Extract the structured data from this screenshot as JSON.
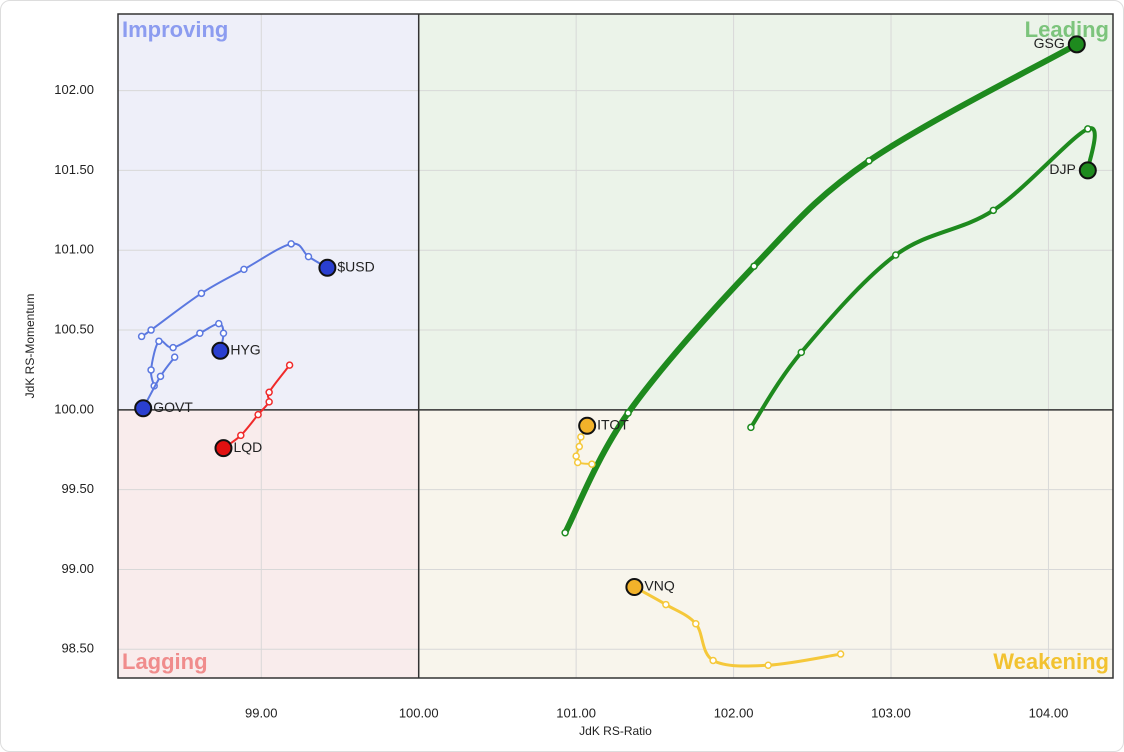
{
  "chart_data": {
    "type": "rrg",
    "xlabel": "JdK RS-Ratio",
    "ylabel": "JdK RS-Momentum",
    "xlim": [
      98.09,
      104.41
    ],
    "ylim": [
      98.32,
      102.48
    ],
    "xticks": [
      {
        "value": 99,
        "label": "99.00"
      },
      {
        "value": 100,
        "label": "100.00"
      },
      {
        "value": 101,
        "label": "101.00"
      },
      {
        "value": 102,
        "label": "102.00"
      },
      {
        "value": 103,
        "label": "103.00"
      },
      {
        "value": 104,
        "label": "104.00"
      }
    ],
    "yticks": [
      {
        "value": 98.5,
        "label": "98.50"
      },
      {
        "value": 99,
        "label": "99.00"
      },
      {
        "value": 99.5,
        "label": "99.50"
      },
      {
        "value": 100,
        "label": "100.00"
      },
      {
        "value": 100.5,
        "label": "100.50"
      },
      {
        "value": 101,
        "label": "101.00"
      },
      {
        "value": 101.5,
        "label": "101.50"
      },
      {
        "value": 102,
        "label": "102.00"
      }
    ],
    "grid": true,
    "center": [
      100,
      100
    ],
    "quadrants": [
      {
        "name": "Improving",
        "corner": "top-left",
        "color": "#8c9cf0",
        "fill": "#eeeff9"
      },
      {
        "name": "Leading",
        "corner": "top-right",
        "color": "#7cc47c",
        "fill": "#ebf3e9"
      },
      {
        "name": "Lagging",
        "corner": "bottom-left",
        "color": "#f08c8c",
        "fill": "#f9ecec"
      },
      {
        "name": "Weakening",
        "corner": "bottom-right",
        "color": "#f2c230",
        "fill": "#f8f5ec"
      }
    ],
    "series": [
      {
        "name": "GSG",
        "color": "#1e8a1e",
        "head_color": "#1e8a1e",
        "line_width": 6,
        "x": [
          100.93,
          101.33,
          102.13,
          102.86,
          104.18
        ],
        "values": [
          99.23,
          99.98,
          100.9,
          101.56,
          102.29
        ]
      },
      {
        "name": "DJP",
        "color": "#1e8a1e",
        "head_color": "#1e8a1e",
        "line_width": 4,
        "x": [
          102.11,
          102.43,
          103.03,
          103.65,
          104.25,
          104.25
        ],
        "values": [
          99.89,
          100.36,
          100.97,
          101.25,
          101.76,
          101.5
        ]
      },
      {
        "name": "$USD",
        "color": "#5b78e0",
        "head_color": "#2a3fcf",
        "line_width": 2,
        "x": [
          98.24,
          98.3,
          98.62,
          98.89,
          99.19,
          99.3,
          99.42
        ],
        "values": [
          100.46,
          100.5,
          100.73,
          100.88,
          101.04,
          100.96,
          100.89
        ]
      },
      {
        "name": "HYG",
        "color": "#5b78e0",
        "head_color": "#2a3fcf",
        "line_width": 2,
        "x": [
          98.32,
          98.3,
          98.35,
          98.44,
          98.61,
          98.73,
          98.76,
          98.74
        ],
        "values": [
          100.15,
          100.25,
          100.43,
          100.39,
          100.48,
          100.54,
          100.48,
          100.37
        ]
      },
      {
        "name": "GOVT",
        "color": "#5b78e0",
        "head_color": "#2a3fcf",
        "line_width": 2,
        "x": [
          98.45,
          98.36,
          98.25
        ],
        "values": [
          100.33,
          100.21,
          100.01
        ]
      },
      {
        "name": "LQD",
        "color": "#f02a2a",
        "head_color": "#e01010",
        "line_width": 2,
        "x": [
          99.18,
          99.05,
          99.05,
          98.98,
          98.87,
          98.76
        ],
        "values": [
          100.28,
          100.11,
          100.05,
          99.97,
          99.84,
          99.76
        ]
      },
      {
        "name": "ITOT",
        "color": "#f5c83a",
        "head_color": "#f2b22a",
        "line_width": 2,
        "x": [
          101.1,
          101.01,
          101.0,
          101.02,
          101.03,
          101.07
        ],
        "values": [
          99.66,
          99.67,
          99.71,
          99.77,
          99.83,
          99.9
        ]
      },
      {
        "name": "VNQ",
        "color": "#f5c83a",
        "head_color": "#f2b22a",
        "line_width": 3,
        "x": [
          102.68,
          102.22,
          101.87,
          101.76,
          101.57,
          101.37
        ],
        "values": [
          98.47,
          98.4,
          98.43,
          98.66,
          98.78,
          98.89
        ]
      }
    ]
  }
}
